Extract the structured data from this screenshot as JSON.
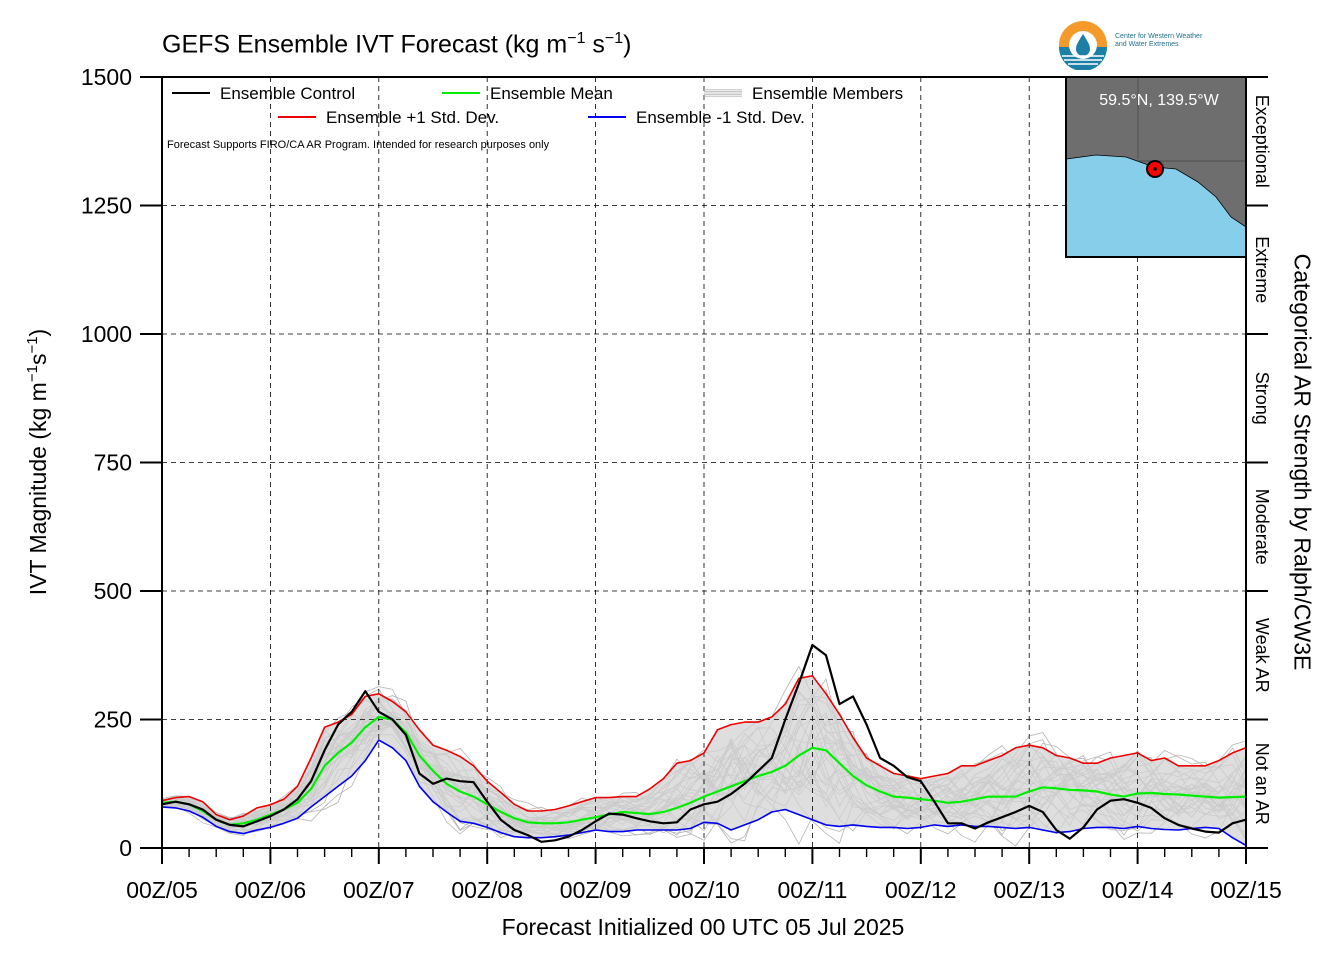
{
  "title": "GEFS Ensemble IVT Forecast (kg m",
  "title_exp1": "−1",
  "title_mid": " s",
  "title_exp2": "−1",
  "title_end": ")",
  "ylabel_main": "IVT Magnitude (kg m",
  "ylabel_exp1": "−1",
  "ylabel_mid": "s",
  "ylabel_exp2": "−1",
  "ylabel_end": ")",
  "right_axis_label": "Categorical AR Strength by Ralph/CW3E",
  "xlabel": "Forecast Initialized 00 UTC 05 Jul 2025",
  "disclaimer": "Forecast Supports FIRO/CA AR Program. Intended for research purposes only",
  "logo_text_line1": "Center for Western Weather",
  "logo_text_line2": "and Water Extremes",
  "inset_location": "59.5°N, 139.5°W",
  "legend": {
    "control": "Ensemble Control",
    "mean": "Ensemble Mean",
    "members": "Ensemble Members",
    "plus_std": "Ensemble +1 Std. Dev.",
    "minus_std": "Ensemble -1 Std. Dev."
  },
  "colors": {
    "control": "#000000",
    "mean": "#00ee00",
    "plus_std": "#ee0000",
    "minus_std": "#0000ee",
    "members": "#b4b4b4",
    "spread_fill": "#d3d3d3",
    "ocean": "#87ceeb",
    "land": "#6e6e6e",
    "marker": "#ff0000"
  },
  "chart_data": {
    "type": "line",
    "ylim": [
      0,
      1500
    ],
    "yticks": [
      0,
      250,
      500,
      750,
      1000,
      1250,
      1500
    ],
    "ytick_labels": [
      "0",
      "250",
      "500",
      "750",
      "1000",
      "1250",
      "1500"
    ],
    "xlim": [
      0,
      240
    ],
    "xticks": [
      0,
      24,
      48,
      72,
      96,
      120,
      144,
      168,
      192,
      216,
      240
    ],
    "xtick_labels": [
      "00Z/05",
      "00Z/06",
      "00Z/07",
      "00Z/08",
      "00Z/09",
      "00Z/10",
      "00Z/11",
      "00Z/12",
      "00Z/13",
      "00Z/14",
      "00Z/15"
    ],
    "x_units": "hours from 00Z/05",
    "categories": [
      {
        "label": "Not an AR",
        "range": [
          0,
          250
        ]
      },
      {
        "label": "Weak AR",
        "range": [
          250,
          500
        ]
      },
      {
        "label": "Moderate",
        "range": [
          500,
          750
        ]
      },
      {
        "label": "Strong",
        "range": [
          750,
          1000
        ]
      },
      {
        "label": "Extreme",
        "range": [
          1000,
          1250
        ]
      },
      {
        "label": "Exceptional",
        "range": [
          1250,
          1500
        ]
      }
    ],
    "grid": true,
    "legend_position": "top-left",
    "series": [
      {
        "name": "Ensemble Control",
        "key": "control",
        "x": [
          0,
          3,
          6,
          9,
          12,
          15,
          18,
          21,
          24,
          27,
          30,
          33,
          36,
          39,
          42,
          45,
          48,
          51,
          54,
          57,
          60,
          63,
          66,
          69,
          72,
          75,
          78,
          81,
          84,
          87,
          90,
          93,
          96,
          99,
          102,
          105,
          108,
          111,
          114,
          117,
          120,
          123,
          126,
          129,
          132,
          135,
          138,
          141,
          144,
          147,
          150,
          153,
          156,
          159,
          162,
          165,
          168,
          171,
          174,
          177,
          180,
          183,
          186,
          189,
          192,
          195,
          198,
          201,
          204,
          207,
          210,
          213,
          216,
          219,
          222,
          225,
          228,
          231,
          234,
          237,
          240
        ],
        "values": [
          85,
          90,
          85,
          75,
          55,
          45,
          42,
          52,
          62,
          75,
          95,
          130,
          190,
          240,
          265,
          305,
          265,
          250,
          220,
          145,
          125,
          135,
          130,
          128,
          90,
          55,
          35,
          25,
          12,
          15,
          22,
          35,
          52,
          67,
          65,
          58,
          52,
          48,
          50,
          75,
          85,
          90,
          105,
          125,
          150,
          175,
          250,
          320,
          395,
          375,
          280,
          295,
          240,
          175,
          160,
          138,
          130,
          90,
          48,
          48,
          38,
          50,
          60,
          70,
          82,
          70,
          35,
          18,
          40,
          75,
          92,
          95,
          88,
          78,
          58,
          45,
          38,
          32,
          30,
          48,
          55
        ]
      },
      {
        "name": "Ensemble Mean",
        "key": "mean",
        "x": [
          0,
          3,
          6,
          9,
          12,
          15,
          18,
          21,
          24,
          27,
          30,
          33,
          36,
          39,
          42,
          45,
          48,
          51,
          54,
          57,
          60,
          63,
          66,
          69,
          72,
          75,
          78,
          81,
          84,
          87,
          90,
          93,
          96,
          99,
          102,
          105,
          108,
          111,
          114,
          117,
          120,
          123,
          126,
          129,
          132,
          135,
          138,
          141,
          144,
          147,
          150,
          153,
          156,
          159,
          162,
          165,
          168,
          171,
          174,
          177,
          180,
          183,
          186,
          189,
          192,
          195,
          198,
          201,
          204,
          207,
          210,
          213,
          216,
          219,
          222,
          225,
          228,
          231,
          234,
          237,
          240
        ],
        "values": [
          88,
          90,
          85,
          72,
          55,
          45,
          48,
          55,
          65,
          75,
          88,
          115,
          160,
          185,
          205,
          235,
          255,
          250,
          225,
          180,
          150,
          125,
          110,
          100,
          85,
          70,
          58,
          50,
          48,
          48,
          50,
          55,
          60,
          65,
          70,
          68,
          66,
          70,
          78,
          88,
          100,
          110,
          120,
          130,
          140,
          148,
          160,
          180,
          195,
          190,
          165,
          140,
          122,
          110,
          100,
          98,
          95,
          92,
          88,
          90,
          95,
          100,
          100,
          100,
          110,
          118,
          116,
          113,
          112,
          110,
          104,
          100,
          106,
          107,
          105,
          104,
          102,
          100,
          98,
          99,
          100
        ]
      },
      {
        "name": "Ensemble +1 Std. Dev.",
        "key": "plus_std",
        "x": [
          0,
          3,
          6,
          9,
          12,
          15,
          18,
          21,
          24,
          27,
          30,
          33,
          36,
          39,
          42,
          45,
          48,
          51,
          54,
          57,
          60,
          63,
          66,
          69,
          72,
          75,
          78,
          81,
          84,
          87,
          90,
          93,
          96,
          99,
          102,
          105,
          108,
          111,
          114,
          117,
          120,
          123,
          126,
          129,
          132,
          135,
          138,
          141,
          144,
          147,
          150,
          153,
          156,
          159,
          162,
          165,
          168,
          171,
          174,
          177,
          180,
          183,
          186,
          189,
          192,
          195,
          198,
          201,
          204,
          207,
          210,
          213,
          216,
          219,
          222,
          225,
          228,
          231,
          234,
          237,
          240
        ],
        "values": [
          92,
          98,
          100,
          90,
          65,
          55,
          62,
          78,
          84,
          95,
          120,
          175,
          235,
          245,
          260,
          295,
          300,
          285,
          265,
          230,
          200,
          190,
          178,
          160,
          130,
          108,
          85,
          72,
          72,
          75,
          82,
          90,
          98,
          98,
          100,
          100,
          115,
          135,
          165,
          170,
          185,
          230,
          240,
          245,
          245,
          255,
          280,
          330,
          335,
          300,
          260,
          215,
          175,
          160,
          145,
          140,
          135,
          140,
          145,
          160,
          160,
          170,
          180,
          195,
          200,
          195,
          180,
          175,
          165,
          165,
          175,
          180,
          185,
          170,
          175,
          160,
          160,
          160,
          170,
          185,
          195
        ]
      },
      {
        "name": "Ensemble -1 Std. Dev.",
        "key": "minus_std",
        "x": [
          0,
          3,
          6,
          9,
          12,
          15,
          18,
          21,
          24,
          27,
          30,
          33,
          36,
          39,
          42,
          45,
          48,
          51,
          54,
          57,
          60,
          63,
          66,
          69,
          72,
          75,
          78,
          81,
          84,
          87,
          90,
          93,
          96,
          99,
          102,
          105,
          108,
          111,
          114,
          117,
          120,
          123,
          126,
          129,
          132,
          135,
          138,
          141,
          144,
          147,
          150,
          153,
          156,
          159,
          162,
          165,
          168,
          171,
          174,
          177,
          180,
          183,
          186,
          189,
          192,
          195,
          198,
          201,
          204,
          207,
          210,
          213,
          216,
          219,
          222,
          225,
          228,
          231,
          234,
          237,
          240
        ],
        "values": [
          80,
          78,
          72,
          60,
          42,
          32,
          28,
          35,
          40,
          48,
          58,
          80,
          100,
          120,
          140,
          170,
          210,
          195,
          170,
          120,
          90,
          70,
          52,
          48,
          40,
          30,
          22,
          20,
          20,
          22,
          25,
          30,
          35,
          32,
          32,
          35,
          35,
          35,
          35,
          38,
          50,
          48,
          35,
          45,
          55,
          70,
          75,
          65,
          55,
          45,
          42,
          45,
          42,
          40,
          40,
          38,
          40,
          45,
          42,
          45,
          42,
          42,
          40,
          38,
          40,
          35,
          30,
          32,
          38,
          40,
          40,
          38,
          42,
          38,
          36,
          35,
          38,
          40,
          38,
          20,
          5
        ]
      }
    ]
  }
}
